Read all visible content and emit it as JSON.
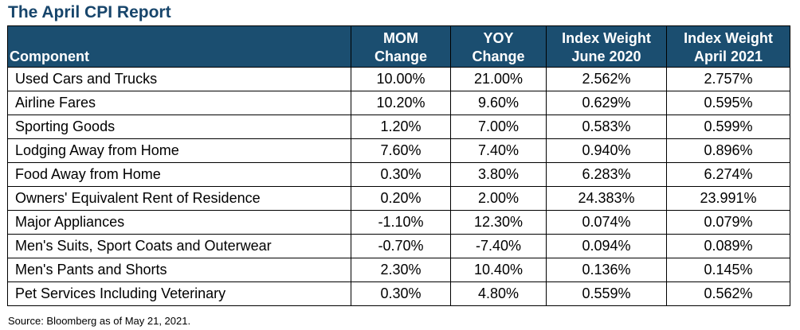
{
  "title": "The April CPI Report",
  "columns": {
    "component": "Component",
    "mom": [
      "MOM",
      "Change"
    ],
    "yoy": [
      "YOY",
      "Change"
    ],
    "w2020": [
      "Index Weight",
      "June 2020"
    ],
    "w2021": [
      "Index Weight",
      "April 2021"
    ]
  },
  "rows": [
    {
      "component": "Used Cars and Trucks",
      "mom": "10.00%",
      "yoy": "21.00%",
      "w2020": "2.562%",
      "w2021": "2.757%"
    },
    {
      "component": "Airline Fares",
      "mom": "10.20%",
      "yoy": "9.60%",
      "w2020": "0.629%",
      "w2021": "0.595%"
    },
    {
      "component": "Sporting Goods",
      "mom": "1.20%",
      "yoy": "7.00%",
      "w2020": "0.583%",
      "w2021": "0.599%"
    },
    {
      "component": "Lodging Away from Home",
      "mom": "7.60%",
      "yoy": "7.40%",
      "w2020": "0.940%",
      "w2021": "0.896%"
    },
    {
      "component": "Food Away from Home",
      "mom": "0.30%",
      "yoy": "3.80%",
      "w2020": "6.283%",
      "w2021": "6.274%"
    },
    {
      "component": "Owners' Equivalent Rent of Residence",
      "mom": "0.20%",
      "yoy": "2.00%",
      "w2020": "24.383%",
      "w2021": "23.991%"
    },
    {
      "component": "Major Appliances",
      "mom": "-1.10%",
      "yoy": "12.30%",
      "w2020": "0.074%",
      "w2021": "0.079%"
    },
    {
      "component": "Men's Suits, Sport Coats and Outerwear",
      "mom": "-0.70%",
      "yoy": "-7.40%",
      "w2020": "0.094%",
      "w2021": "0.089%"
    },
    {
      "component": "Men's Pants and Shorts",
      "mom": "2.30%",
      "yoy": "10.40%",
      "w2020": "0.136%",
      "w2021": "0.145%"
    },
    {
      "component": "Pet Services Including Veterinary",
      "mom": "0.30%",
      "yoy": "4.80%",
      "w2020": "0.559%",
      "w2021": "0.562%"
    }
  ],
  "source": "Source: Bloomberg as of May 21, 2021.",
  "colors": {
    "header_bg": "#1b4e70",
    "title": "#17456b",
    "header_text": "#ffffff"
  }
}
